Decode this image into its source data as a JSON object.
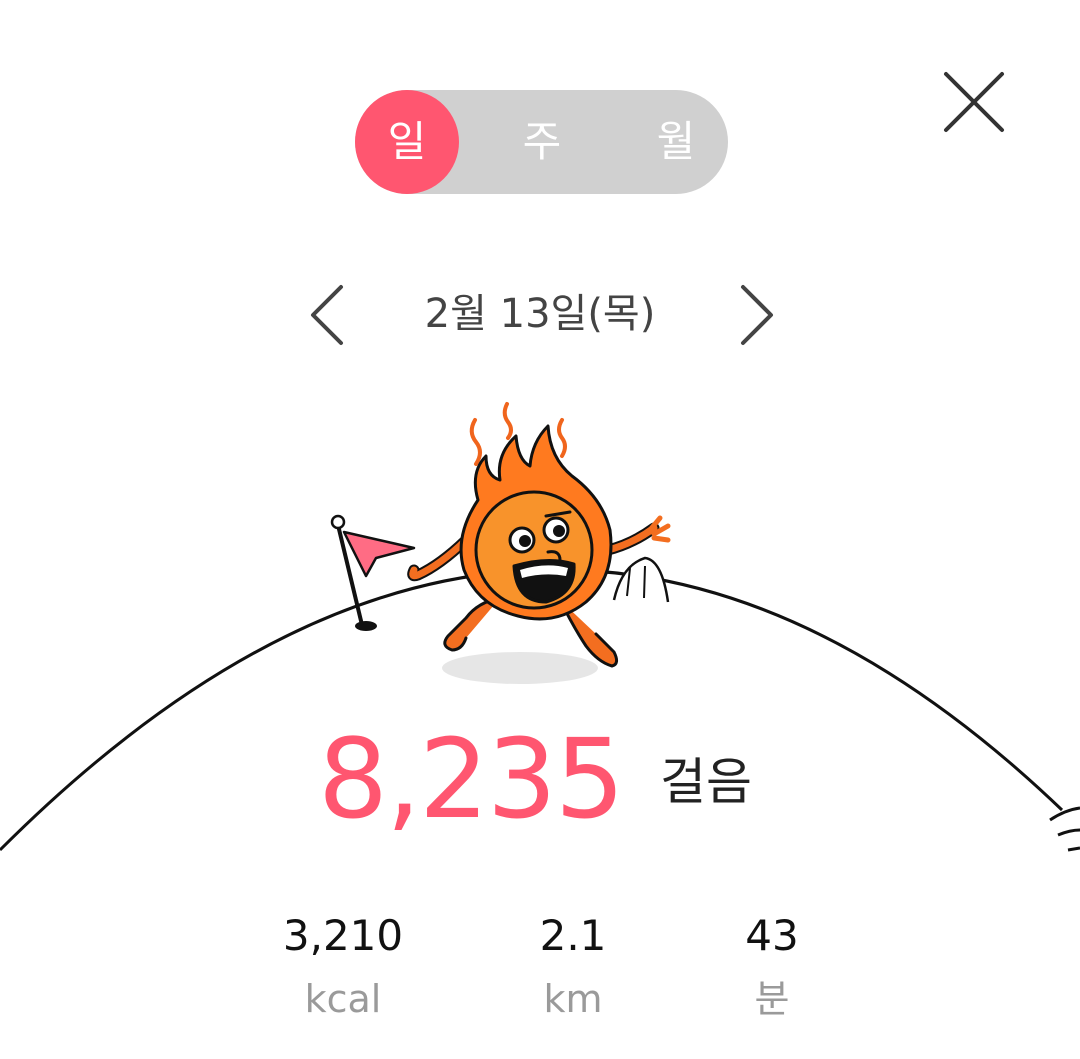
{
  "period_switch": {
    "day": "일",
    "week": "주",
    "month": "월",
    "selected": "일"
  },
  "date_nav": {
    "date": "2월 13일(목)",
    "prev_icon": "chevron-left-icon",
    "next_icon": "chevron-right-icon"
  },
  "close_icon": "close-icon",
  "steps": {
    "value": "8,235",
    "unit": "걸음"
  },
  "stats": {
    "calories": {
      "value": "3,210",
      "unit": "kcal"
    },
    "distance": {
      "value": "2.1",
      "unit": "km"
    },
    "duration": {
      "value": "43",
      "unit": "분"
    }
  },
  "colors": {
    "accent": "#ff5670",
    "switch_bg": "#d0d0d0",
    "flame": "#ff7a1f",
    "flame_face": "#f8932b",
    "muted_text": "#9a9a9a"
  }
}
